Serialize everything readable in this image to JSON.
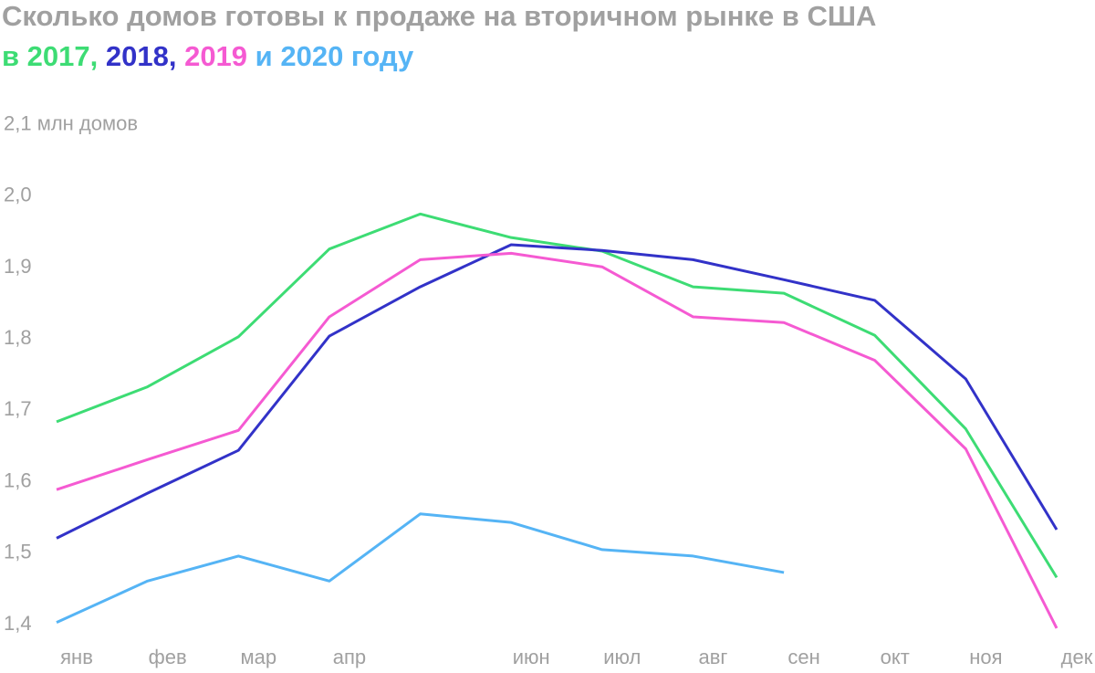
{
  "chart_data": {
    "type": "line",
    "title": "Сколько домов готовы к продаже на вторичном рынке в США",
    "subtitle_parts": [
      "в ",
      ", ",
      ", ",
      " и ",
      " году"
    ],
    "categories": [
      "янв",
      "фев",
      "мар",
      "апр",
      null,
      "июн",
      "июл",
      "авг",
      "сен",
      "окт",
      "ноя",
      "дек"
    ],
    "series": [
      {
        "name": "2017",
        "color": "#3ddc74",
        "values": [
          1.684,
          1.733,
          1.803,
          1.926,
          1.975,
          1.942,
          1.923,
          1.873,
          1.864,
          1.805,
          1.674,
          1.466
        ]
      },
      {
        "name": "2018",
        "color": "#3232c8",
        "values": [
          1.521,
          1.584,
          1.644,
          1.804,
          1.873,
          1.932,
          1.924,
          1.911,
          1.883,
          1.854,
          1.744,
          1.533
        ]
      },
      {
        "name": "2019",
        "color": "#f55ad2",
        "values": [
          1.589,
          1.631,
          1.672,
          1.831,
          1.911,
          1.92,
          1.901,
          1.831,
          1.823,
          1.77,
          1.646,
          1.395
        ]
      },
      {
        "name": "2020",
        "color": "#55b4f5",
        "values": [
          1.403,
          1.461,
          1.496,
          1.461,
          1.555,
          1.543,
          1.505,
          1.496,
          1.473,
          null,
          null,
          null
        ]
      }
    ],
    "ylim": [
      1.4,
      2.1
    ],
    "yticks": [
      {
        "value": 1.4,
        "label": "1,4"
      },
      {
        "value": 1.5,
        "label": "1,5"
      },
      {
        "value": 1.6,
        "label": "1,6"
      },
      {
        "value": 1.7,
        "label": "1,7"
      },
      {
        "value": 1.8,
        "label": "1,8"
      },
      {
        "value": 1.9,
        "label": "1,9"
      },
      {
        "value": 2.0,
        "label": "2,0"
      },
      {
        "value": 2.1,
        "label": "2,1 млн домов"
      }
    ],
    "grid": false
  }
}
